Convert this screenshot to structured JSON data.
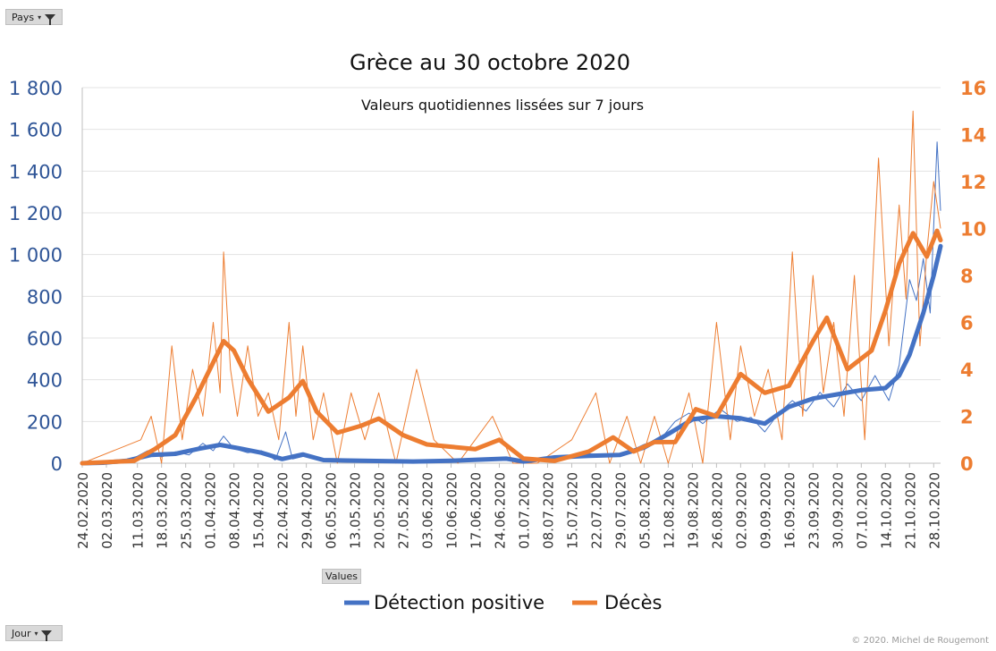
{
  "filters": {
    "pays_label": "Pays",
    "jour_label": "Jour",
    "values_label": "Values"
  },
  "footer": {
    "copyright": "© 2020.  Michel de Rougemont"
  },
  "colors": {
    "blue": "#4472c4",
    "orange": "#ed7d31",
    "left_axis": "#2f5597",
    "right_axis": "#ed7d31"
  },
  "chart_data": {
    "type": "line",
    "title": "Grèce au 30 octobre 2020",
    "subtitle": "Valeurs quotidiennes lissées sur 7 jours",
    "y_left": {
      "min": 0,
      "max": 1800,
      "step": 200,
      "ticks": [
        "0",
        "200",
        "400",
        "600",
        "800",
        "1 000",
        "1 200",
        "1 400",
        "1 600",
        "1 800"
      ]
    },
    "y_right": {
      "min": 0,
      "max": 16,
      "step": 2,
      "ticks": [
        "0",
        "2",
        "4",
        "6",
        "8",
        "10",
        "12",
        "14",
        "16"
      ]
    },
    "x_start": "2020-02-24",
    "x_end": "2020-10-30",
    "x_ticks": [
      "24.02.2020",
      "02.03.2020",
      "11.03.2020",
      "18.03.2020",
      "25.03.2020",
      "01.04.2020",
      "08.04.2020",
      "15.04.2020",
      "22.04.2020",
      "29.04.2020",
      "06.05.2020",
      "13.05.2020",
      "20.05.2020",
      "27.05.2020",
      "03.06.2020",
      "10.06.2020",
      "17.06.2020",
      "24.06.2020",
      "01.07.2020",
      "08.07.2020",
      "15.07.2020",
      "22.07.2020",
      "29.07.2020",
      "05.08.2020",
      "12.08.2020",
      "19.08.2020",
      "26.08.2020",
      "02.09.2020",
      "09.09.2020",
      "16.09.2020",
      "23.09.2020",
      "30.09.2020",
      "07.10.2020",
      "14.10.2020",
      "21.10.2020",
      "28.10.2020"
    ],
    "legend_position": "bottom",
    "series": [
      {
        "name": "Détection positive",
        "axis": "left",
        "smoothed": [
          [
            "2020-02-24",
            0
          ],
          [
            "2020-03-01",
            2
          ],
          [
            "2020-03-08",
            12
          ],
          [
            "2020-03-15",
            40
          ],
          [
            "2020-03-22",
            45
          ],
          [
            "2020-03-29",
            70
          ],
          [
            "2020-04-04",
            88
          ],
          [
            "2020-04-10",
            70
          ],
          [
            "2020-04-16",
            50
          ],
          [
            "2020-04-22",
            20
          ],
          [
            "2020-04-28",
            42
          ],
          [
            "2020-05-04",
            15
          ],
          [
            "2020-05-15",
            12
          ],
          [
            "2020-05-30",
            8
          ],
          [
            "2020-06-10",
            12
          ],
          [
            "2020-06-20",
            18
          ],
          [
            "2020-06-26",
            22
          ],
          [
            "2020-07-01",
            8
          ],
          [
            "2020-07-10",
            28
          ],
          [
            "2020-07-20",
            35
          ],
          [
            "2020-07-29",
            40
          ],
          [
            "2020-08-05",
            75
          ],
          [
            "2020-08-12",
            140
          ],
          [
            "2020-08-19",
            210
          ],
          [
            "2020-08-26",
            225
          ],
          [
            "2020-09-02",
            215
          ],
          [
            "2020-09-09",
            190
          ],
          [
            "2020-09-16",
            270
          ],
          [
            "2020-09-23",
            310
          ],
          [
            "2020-09-30",
            330
          ],
          [
            "2020-10-07",
            350
          ],
          [
            "2020-10-14",
            360
          ],
          [
            "2020-10-18",
            420
          ],
          [
            "2020-10-21",
            520
          ],
          [
            "2020-10-25",
            720
          ],
          [
            "2020-10-28",
            900
          ],
          [
            "2020-10-30",
            1040
          ]
        ],
        "daily": [
          [
            "2020-02-24",
            0
          ],
          [
            "2020-03-05",
            10
          ],
          [
            "2020-03-10",
            25
          ],
          [
            "2020-03-14",
            60
          ],
          [
            "2020-03-18",
            30
          ],
          [
            "2020-03-22",
            55
          ],
          [
            "2020-03-26",
            40
          ],
          [
            "2020-03-30",
            95
          ],
          [
            "2020-04-02",
            60
          ],
          [
            "2020-04-05",
            130
          ],
          [
            "2020-04-08",
            70
          ],
          [
            "2020-04-12",
            50
          ],
          [
            "2020-04-16",
            60
          ],
          [
            "2020-04-20",
            15
          ],
          [
            "2020-04-23",
            150
          ],
          [
            "2020-04-25",
            20
          ],
          [
            "2020-04-30",
            40
          ],
          [
            "2020-05-05",
            10
          ],
          [
            "2020-05-15",
            15
          ],
          [
            "2020-06-01",
            5
          ],
          [
            "2020-06-15",
            20
          ],
          [
            "2020-06-25",
            25
          ],
          [
            "2020-07-01",
            5
          ],
          [
            "2020-07-10",
            30
          ],
          [
            "2020-07-20",
            45
          ],
          [
            "2020-07-29",
            35
          ],
          [
            "2020-08-05",
            90
          ],
          [
            "2020-08-10",
            120
          ],
          [
            "2020-08-14",
            200
          ],
          [
            "2020-08-18",
            240
          ],
          [
            "2020-08-22",
            190
          ],
          [
            "2020-08-27",
            260
          ],
          [
            "2020-09-01",
            200
          ],
          [
            "2020-09-05",
            220
          ],
          [
            "2020-09-09",
            150
          ],
          [
            "2020-09-13",
            240
          ],
          [
            "2020-09-17",
            300
          ],
          [
            "2020-09-21",
            250
          ],
          [
            "2020-09-25",
            340
          ],
          [
            "2020-09-29",
            270
          ],
          [
            "2020-10-03",
            380
          ],
          [
            "2020-10-07",
            300
          ],
          [
            "2020-10-11",
            420
          ],
          [
            "2020-10-15",
            300
          ],
          [
            "2020-10-18",
            470
          ],
          [
            "2020-10-21",
            880
          ],
          [
            "2020-10-23",
            780
          ],
          [
            "2020-10-25",
            980
          ],
          [
            "2020-10-27",
            720
          ],
          [
            "2020-10-29",
            1540
          ],
          [
            "2020-10-30",
            1210
          ]
        ]
      },
      {
        "name": "Décès",
        "axis": "right",
        "smoothed": [
          [
            "2020-02-24",
            0
          ],
          [
            "2020-03-10",
            0.1
          ],
          [
            "2020-03-16",
            0.6
          ],
          [
            "2020-03-22",
            1.2
          ],
          [
            "2020-03-28",
            2.8
          ],
          [
            "2020-04-01",
            4.0
          ],
          [
            "2020-04-05",
            5.2
          ],
          [
            "2020-04-08",
            4.8
          ],
          [
            "2020-04-12",
            3.6
          ],
          [
            "2020-04-18",
            2.2
          ],
          [
            "2020-04-24",
            2.8
          ],
          [
            "2020-04-28",
            3.5
          ],
          [
            "2020-05-02",
            2.2
          ],
          [
            "2020-05-08",
            1.3
          ],
          [
            "2020-05-15",
            1.6
          ],
          [
            "2020-05-20",
            1.9
          ],
          [
            "2020-05-27",
            1.2
          ],
          [
            "2020-06-03",
            0.8
          ],
          [
            "2020-06-10",
            0.7
          ],
          [
            "2020-06-17",
            0.6
          ],
          [
            "2020-06-24",
            1.0
          ],
          [
            "2020-07-01",
            0.2
          ],
          [
            "2020-07-10",
            0.1
          ],
          [
            "2020-07-20",
            0.5
          ],
          [
            "2020-07-27",
            1.1
          ],
          [
            "2020-08-02",
            0.5
          ],
          [
            "2020-08-08",
            0.9
          ],
          [
            "2020-08-14",
            0.9
          ],
          [
            "2020-08-20",
            2.3
          ],
          [
            "2020-08-26",
            2.0
          ],
          [
            "2020-09-02",
            3.8
          ],
          [
            "2020-09-09",
            3.0
          ],
          [
            "2020-09-16",
            3.3
          ],
          [
            "2020-09-23",
            5.2
          ],
          [
            "2020-09-27",
            6.2
          ],
          [
            "2020-10-03",
            4.0
          ],
          [
            "2020-10-10",
            4.8
          ],
          [
            "2020-10-14",
            6.5
          ],
          [
            "2020-10-18",
            8.5
          ],
          [
            "2020-10-22",
            9.8
          ],
          [
            "2020-10-26",
            8.8
          ],
          [
            "2020-10-29",
            9.9
          ],
          [
            "2020-10-30",
            9.5
          ]
        ],
        "daily": [
          [
            "2020-02-24",
            0
          ],
          [
            "2020-03-12",
            1
          ],
          [
            "2020-03-15",
            2
          ],
          [
            "2020-03-18",
            0
          ],
          [
            "2020-03-21",
            5
          ],
          [
            "2020-03-24",
            1
          ],
          [
            "2020-03-27",
            4
          ],
          [
            "2020-03-30",
            2
          ],
          [
            "2020-04-02",
            6
          ],
          [
            "2020-04-04",
            3
          ],
          [
            "2020-04-05",
            9
          ],
          [
            "2020-04-07",
            4
          ],
          [
            "2020-04-09",
            2
          ],
          [
            "2020-04-12",
            5
          ],
          [
            "2020-04-15",
            2
          ],
          [
            "2020-04-18",
            3
          ],
          [
            "2020-04-21",
            1
          ],
          [
            "2020-04-24",
            6
          ],
          [
            "2020-04-26",
            2
          ],
          [
            "2020-04-28",
            5
          ],
          [
            "2020-05-01",
            1
          ],
          [
            "2020-05-04",
            3
          ],
          [
            "2020-05-08",
            0
          ],
          [
            "2020-05-12",
            3
          ],
          [
            "2020-05-16",
            1
          ],
          [
            "2020-05-20",
            3
          ],
          [
            "2020-05-25",
            0
          ],
          [
            "2020-05-31",
            4
          ],
          [
            "2020-06-05",
            1
          ],
          [
            "2020-06-12",
            0
          ],
          [
            "2020-06-17",
            1
          ],
          [
            "2020-06-22",
            2
          ],
          [
            "2020-06-28",
            0
          ],
          [
            "2020-07-05",
            0
          ],
          [
            "2020-07-15",
            1
          ],
          [
            "2020-07-22",
            3
          ],
          [
            "2020-07-26",
            0
          ],
          [
            "2020-07-31",
            2
          ],
          [
            "2020-08-04",
            0
          ],
          [
            "2020-08-08",
            2
          ],
          [
            "2020-08-12",
            0
          ],
          [
            "2020-08-18",
            3
          ],
          [
            "2020-08-22",
            0
          ],
          [
            "2020-08-26",
            6
          ],
          [
            "2020-08-30",
            1
          ],
          [
            "2020-09-02",
            5
          ],
          [
            "2020-09-06",
            2
          ],
          [
            "2020-09-10",
            4
          ],
          [
            "2020-09-14",
            1
          ],
          [
            "2020-09-17",
            9
          ],
          [
            "2020-09-20",
            2
          ],
          [
            "2020-09-23",
            8
          ],
          [
            "2020-09-26",
            3
          ],
          [
            "2020-09-29",
            6
          ],
          [
            "2020-10-02",
            2
          ],
          [
            "2020-10-05",
            8
          ],
          [
            "2020-10-08",
            1
          ],
          [
            "2020-10-12",
            13
          ],
          [
            "2020-10-15",
            5
          ],
          [
            "2020-10-18",
            11
          ],
          [
            "2020-10-20",
            7
          ],
          [
            "2020-10-22",
            15
          ],
          [
            "2020-10-24",
            5
          ],
          [
            "2020-10-26",
            9
          ],
          [
            "2020-10-28",
            12
          ],
          [
            "2020-10-30",
            10
          ]
        ]
      }
    ]
  }
}
